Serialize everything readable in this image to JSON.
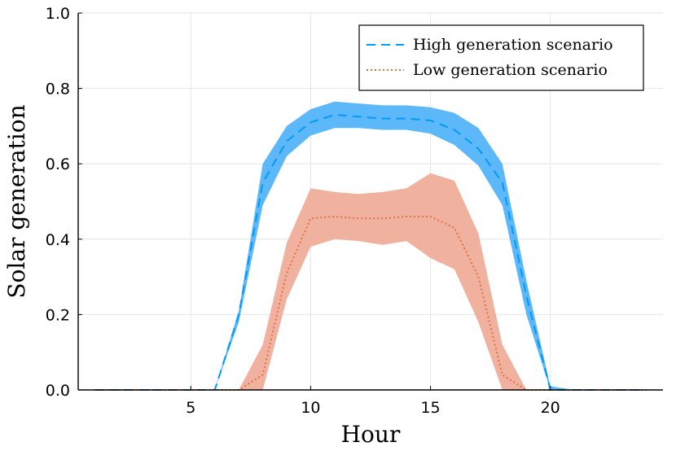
{
  "chart_data": {
    "type": "line",
    "title": "",
    "xlabel": "Hour",
    "ylabel": "Solar generation",
    "xlim": [
      0.3,
      24.7
    ],
    "ylim": [
      0,
      1
    ],
    "xticks": [
      5,
      10,
      15,
      20
    ],
    "yticks": [
      0.0,
      0.2,
      0.4,
      0.6,
      0.8,
      1.0
    ],
    "ytick_labels": [
      "0.0",
      "0.2",
      "0.4",
      "0.6",
      "0.8",
      "1.0"
    ],
    "grid": true,
    "legend_position": "top-right",
    "x": [
      1,
      2,
      3,
      4,
      5,
      6,
      7,
      8,
      9,
      10,
      11,
      12,
      13,
      14,
      15,
      16,
      17,
      18,
      19,
      20,
      21,
      22,
      23,
      24
    ],
    "series": [
      {
        "name": "High generation scenario",
        "color": "#009af9",
        "band_color": "#5cb8f9",
        "line_style": "dashed",
        "values": [
          0,
          0,
          0,
          0,
          0,
          0,
          0.2,
          0.55,
          0.66,
          0.71,
          0.73,
          0.725,
          0.72,
          0.72,
          0.715,
          0.69,
          0.64,
          0.55,
          0.25,
          0,
          0,
          0,
          0,
          0
        ],
        "upper": [
          0,
          0,
          0,
          0,
          0,
          0,
          0.21,
          0.6,
          0.7,
          0.745,
          0.765,
          0.76,
          0.755,
          0.755,
          0.75,
          0.735,
          0.695,
          0.6,
          0.29,
          0.01,
          0,
          0,
          0,
          0
        ],
        "lower": [
          0,
          0,
          0,
          0,
          0,
          0,
          0.18,
          0.49,
          0.62,
          0.675,
          0.695,
          0.695,
          0.69,
          0.69,
          0.68,
          0.65,
          0.595,
          0.49,
          0.2,
          0,
          0,
          0,
          0,
          0
        ]
      },
      {
        "name": "Low generation scenario",
        "color": "#e26f46",
        "band_color": "#f0b29f",
        "line_style": "dotted",
        "values": [
          0,
          0,
          0,
          0,
          0,
          0,
          0,
          0.04,
          0.31,
          0.455,
          0.46,
          0.455,
          0.455,
          0.46,
          0.46,
          0.43,
          0.3,
          0.04,
          0,
          0,
          0,
          0,
          0,
          0
        ],
        "upper": [
          0,
          0,
          0,
          0,
          0,
          0,
          0,
          0.12,
          0.39,
          0.535,
          0.525,
          0.52,
          0.525,
          0.535,
          0.575,
          0.555,
          0.415,
          0.12,
          0,
          0,
          0,
          0,
          0,
          0
        ],
        "lower": [
          0,
          0,
          0,
          0,
          0,
          0,
          0,
          0,
          0.24,
          0.38,
          0.4,
          0.395,
          0.385,
          0.395,
          0.35,
          0.32,
          0.18,
          0,
          0,
          0,
          0,
          0,
          0,
          0
        ]
      }
    ]
  }
}
